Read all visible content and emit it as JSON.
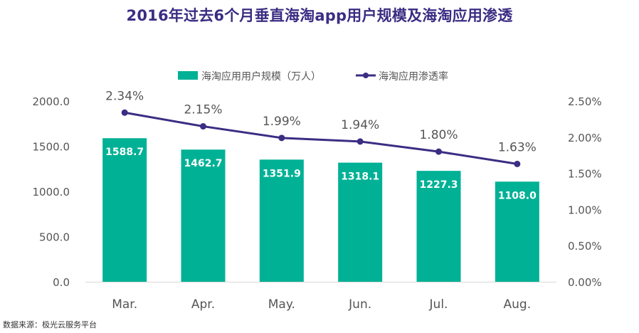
{
  "chart_data": {
    "type": "bar+line",
    "title": "2016年过去6个月垂直海淘app用户规模及海淘应用渗透",
    "categories": [
      "Mar.",
      "Apr.",
      "May.",
      "Jun.",
      "Jul.",
      "Aug."
    ],
    "series": [
      {
        "name": "海淘应用用户规模（万人）",
        "type": "bar",
        "axis": "left",
        "values": [
          1588.7,
          1462.7,
          1351.9,
          1318.1,
          1227.3,
          1108.0
        ],
        "labels": [
          "1588.7",
          "1462.7",
          "1351.9",
          "1318.1",
          "1227.3",
          "1108.0"
        ],
        "color": "#00b195"
      },
      {
        "name": "海淘应用渗透率",
        "type": "line",
        "axis": "right",
        "values": [
          2.34,
          2.15,
          1.99,
          1.94,
          1.8,
          1.63
        ],
        "labels": [
          "2.34%",
          "2.15%",
          "1.99%",
          "1.94%",
          "1.80%",
          "1.63%"
        ],
        "color": "#3b2d83"
      }
    ],
    "y_left": {
      "range": [
        0,
        2000
      ],
      "ticks": [
        "0.0",
        "500.0",
        "1000.0",
        "1500.0",
        "2000.0"
      ]
    },
    "y_right": {
      "range": [
        0,
        2.5
      ],
      "unit": "%",
      "ticks": [
        "0.00%",
        "0.50%",
        "1.00%",
        "1.50%",
        "2.00%",
        "2.50%"
      ]
    },
    "legend_position": "top-center",
    "grid": false
  },
  "source_note": "数据来源：极光云服务平台"
}
